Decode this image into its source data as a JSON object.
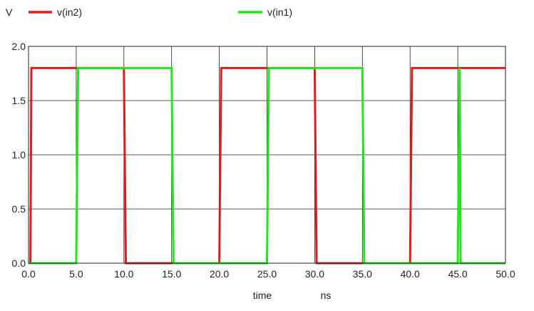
{
  "chart_data": {
    "type": "line",
    "ylabel": "V",
    "xlabel": "time",
    "xunit": "ns",
    "xlim": [
      0,
      50
    ],
    "ylim": [
      0,
      2
    ],
    "xticks": [
      "0.0",
      "5.0",
      "10.0",
      "15.0",
      "20.0",
      "25.0",
      "30.0",
      "35.0",
      "40.0",
      "45.0",
      "50.0"
    ],
    "yticks": [
      "0.0",
      "0.5",
      "1.0",
      "1.5",
      "2.0"
    ],
    "grid": true,
    "legend_position": "top",
    "series": [
      {
        "name": "v(in2)",
        "color": "#e01b1b",
        "points": [
          [
            0,
            0
          ],
          [
            0.2,
            0
          ],
          [
            0.3,
            1.8
          ],
          [
            10,
            1.8
          ],
          [
            10.2,
            0
          ],
          [
            20,
            0
          ],
          [
            20.2,
            1.8
          ],
          [
            30,
            1.8
          ],
          [
            30.2,
            0
          ],
          [
            40,
            0
          ],
          [
            40.2,
            1.8
          ],
          [
            50,
            1.8
          ]
        ]
      },
      {
        "name": "v(in1)",
        "color": "#22e61d",
        "points": [
          [
            0,
            0
          ],
          [
            5,
            0
          ],
          [
            5.2,
            1.8
          ],
          [
            10,
            1.8
          ],
          [
            10.2,
            1.8
          ],
          [
            15,
            1.8
          ],
          [
            15.2,
            0
          ],
          [
            25,
            0
          ],
          [
            25.2,
            1.8
          ],
          [
            35,
            1.8
          ],
          [
            35.2,
            0
          ],
          [
            45,
            0
          ],
          [
            45.2,
            1.8
          ],
          [
            45.3,
            0
          ],
          [
            50,
            0
          ]
        ]
      }
    ]
  }
}
